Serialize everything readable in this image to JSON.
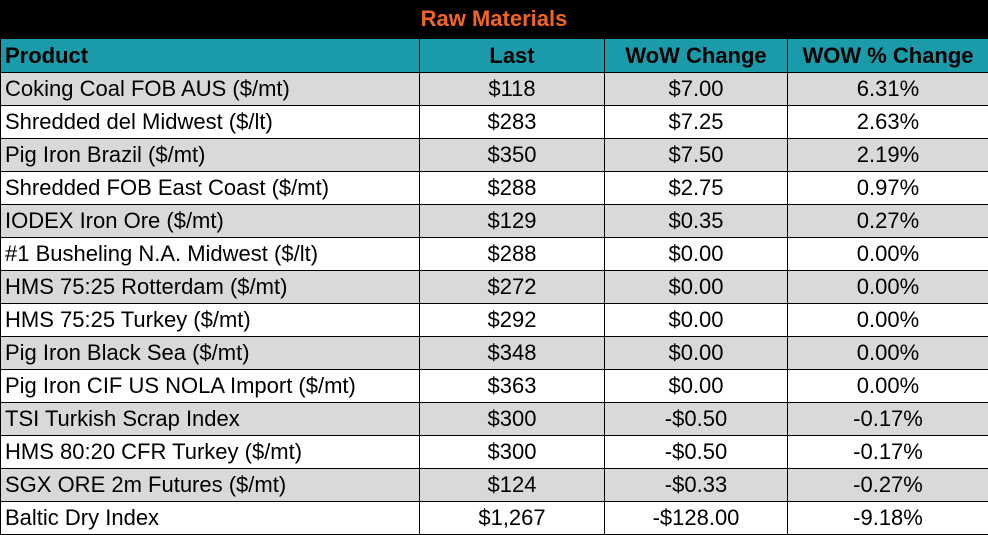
{
  "title": "Raw Materials",
  "headers": [
    "Product",
    "Last",
    "WoW Change",
    "WOW % Change"
  ],
  "rows": [
    {
      "product": "Coking Coal FOB AUS ($/mt)",
      "last": "$118",
      "wow": "$7.00",
      "pct": "6.31%"
    },
    {
      "product": "Shredded del  Midwest ($/lt)",
      "last": "$283",
      "wow": "$7.25",
      "pct": "2.63%"
    },
    {
      "product": "Pig Iron Brazil ($/mt)",
      "last": "$350",
      "wow": "$7.50",
      "pct": "2.19%"
    },
    {
      "product": "Shredded FOB East Coast ($/mt)",
      "last": "$288",
      "wow": "$2.75",
      "pct": "0.97%"
    },
    {
      "product": "IODEX  Iron Ore ($/mt)",
      "last": "$129",
      "wow": "$0.35",
      "pct": "0.27%"
    },
    {
      "product": "#1 Busheling N.A. Midwest ($/lt)",
      "last": "$288",
      "wow": "$0.00",
      "pct": "0.00%"
    },
    {
      "product": "HMS 75:25 Rotterdam ($/mt)",
      "last": "$272",
      "wow": "$0.00",
      "pct": "0.00%"
    },
    {
      "product": "HMS 75:25 Turkey ($/mt)",
      "last": "$292",
      "wow": "$0.00",
      "pct": "0.00%"
    },
    {
      "product": "Pig Iron Black Sea ($/mt)",
      "last": "$348",
      "wow": "$0.00",
      "pct": "0.00%"
    },
    {
      "product": "Pig Iron CIF US NOLA Import ($/mt)",
      "last": "$363",
      "wow": "$0.00",
      "pct": "0.00%"
    },
    {
      "product": "TSI Turkish Scrap Index",
      "last": "$300",
      "wow": "-$0.50",
      "pct": "-0.17%"
    },
    {
      "product": "HMS 80:20 CFR Turkey ($/mt)",
      "last": "$300",
      "wow": "-$0.50",
      "pct": "-0.17%"
    },
    {
      "product": "SGX ORE 2m Futures ($/mt)",
      "last": "$124",
      "wow": "-$0.33",
      "pct": "-0.27%"
    },
    {
      "product": "Baltic Dry Index",
      "last": "$1,267",
      "wow": "-$128.00",
      "pct": "-9.18%"
    }
  ],
  "colors": {
    "title_bg": "#000000",
    "title_text": "#f26522",
    "header_bg": "#1b9aaa",
    "row_shade": "#d9d9d9",
    "row_plain": "#ffffff"
  }
}
